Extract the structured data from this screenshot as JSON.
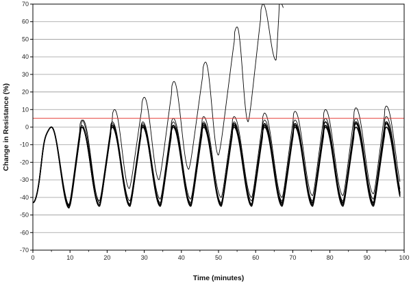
{
  "chart_data": {
    "type": "line",
    "title": "",
    "xlabel": "Time (minutes)",
    "ylabel": "Change in Resistance (%)",
    "xlim": [
      0,
      100
    ],
    "ylim": [
      -70,
      70
    ],
    "x_ticks": [
      0,
      10,
      20,
      30,
      40,
      50,
      60,
      70,
      80,
      90,
      100
    ],
    "y_ticks": [
      70,
      60,
      50,
      40,
      30,
      20,
      10,
      0,
      -10,
      -20,
      -30,
      -40,
      -50,
      -60,
      -70
    ],
    "grid": "horizontal",
    "legend": "none",
    "threshold": {
      "y": 5,
      "color": "#e53935"
    },
    "cycle_minutes": 8.2,
    "series": [
      {
        "peaks": [
          0,
          4,
          10,
          17,
          26,
          37,
          57,
          70,
          71
        ],
        "peak_x": [
          5,
          13.5,
          22,
          30,
          38,
          46.5,
          55,
          62,
          66.5
        ],
        "troughs": [
          -45,
          -43,
          -35,
          -30,
          -24,
          -16,
          3,
          38
        ],
        "trough_x": [
          10,
          18,
          26,
          34,
          42,
          50,
          58,
          65.5
        ]
      },
      {
        "peaks": [
          0,
          4,
          3,
          3,
          5,
          6,
          6,
          8,
          9,
          10,
          11,
          12,
          13
        ],
        "troughs": [
          -44,
          -42,
          -42,
          -41,
          -41,
          -40,
          -40,
          -40,
          -39,
          -39,
          -38,
          -37,
          -37
        ]
      },
      {
        "peaks": [
          0,
          1,
          2,
          2,
          3,
          3,
          3,
          4,
          4,
          5,
          5,
          6,
          6
        ],
        "troughs": [
          -45,
          -44,
          -44,
          -43,
          -43,
          -43,
          -42,
          -42,
          -42,
          -42,
          -41,
          -41,
          -41
        ]
      },
      {
        "peaks": [
          0,
          0,
          1,
          1,
          1,
          2,
          2,
          2,
          2,
          3,
          3,
          3,
          4
        ],
        "troughs": [
          -45,
          -45,
          -44,
          -44,
          -44,
          -44,
          -44,
          -43,
          -43,
          -43,
          -43,
          -43,
          -43
        ]
      },
      {
        "peaks": [
          0,
          0,
          0,
          0,
          1,
          1,
          1,
          1,
          1,
          1,
          2,
          2,
          2
        ],
        "troughs": [
          -45,
          -45,
          -45,
          -45,
          -45,
          -44,
          -44,
          -44,
          -44,
          -44,
          -44,
          -44,
          -44
        ]
      },
      {
        "peaks": [
          0,
          0,
          0,
          0,
          0,
          0,
          0,
          0,
          0,
          0,
          0,
          0,
          0
        ],
        "troughs": [
          -46,
          -45,
          -45,
          -45,
          -45,
          -45,
          -45,
          -45,
          -45,
          -45,
          -45,
          -45,
          -45
        ]
      }
    ]
  }
}
